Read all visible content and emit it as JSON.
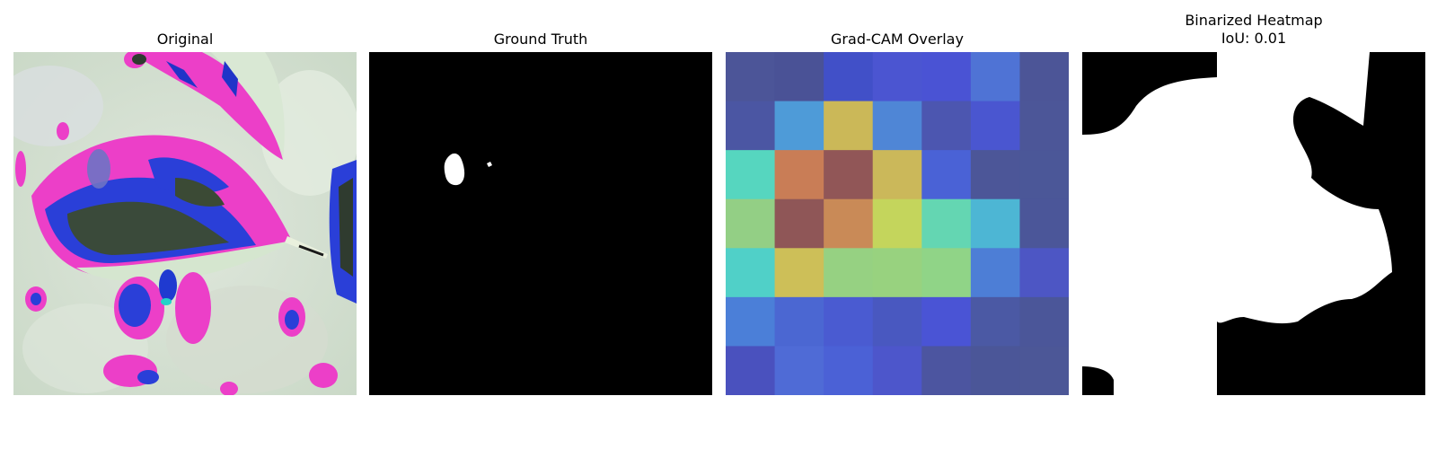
{
  "panels": {
    "original": {
      "title": "Original"
    },
    "ground_truth": {
      "title": "Ground Truth"
    },
    "gradcam": {
      "title": "Grad-CAM Overlay",
      "heatmap_rows": [
        [
          "#4c5598",
          "#4a5296",
          "#4150c8",
          "#4b55d1",
          "#4a53d4",
          "#4f73d5",
          "#4c5597"
        ],
        [
          "#4b56a3",
          "#4e9bd8",
          "#cbb858",
          "#4f86d6",
          "#4c56b0",
          "#4a56d0",
          "#4c5698"
        ],
        [
          "#56d6bf",
          "#c97d56",
          "#915657",
          "#cbb85a",
          "#4a62d6",
          "#4c5698",
          "#4b5798"
        ],
        [
          "#93cf85",
          "#8f5657",
          "#c98a57",
          "#c4d55c",
          "#64d6b2",
          "#4db6d4",
          "#4b5699"
        ],
        [
          "#50d0c8",
          "#cdbf58",
          "#96d182",
          "#98d27f",
          "#90d487",
          "#4d7ed6",
          "#4d56c4"
        ],
        [
          "#4b7fd8",
          "#4b67d2",
          "#4a5bd1",
          "#4958c0",
          "#4a54d5",
          "#4b59a4",
          "#4b5699"
        ],
        [
          "#4a51be",
          "#4f6bd6",
          "#4b61d6",
          "#4d56cb",
          "#4c55a0",
          "#4b5698",
          "#4c5797"
        ]
      ]
    },
    "binarized": {
      "title_line1": "Binarized Heatmap",
      "title_line2": "IoU: 0.01"
    }
  }
}
